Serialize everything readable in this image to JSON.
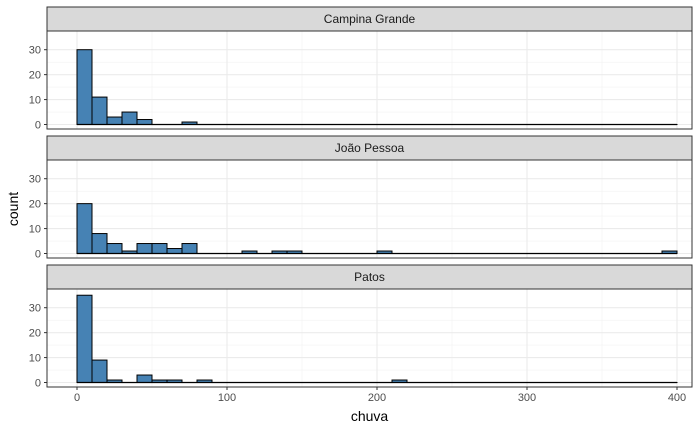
{
  "chart_data": {
    "type": "bar",
    "subtype": "faceted-histogram",
    "xlabel": "chuva",
    "ylabel": "count",
    "xlim": [
      -20,
      410
    ],
    "ylim": [
      -1.8,
      37.5
    ],
    "x_ticks": [
      0,
      100,
      200,
      300,
      400
    ],
    "x_tick_labels": [
      "0",
      "100",
      "200",
      "300",
      "400"
    ],
    "y_ticks": [
      0,
      10,
      20,
      30
    ],
    "y_tick_labels": [
      "0",
      "10",
      "20",
      "30"
    ],
    "grid": true,
    "bin_width": 10,
    "bar_fill": "#4682b4",
    "bar_outline": "#000000",
    "strip_fill": "#d9d9d9",
    "bins": [
      0,
      10,
      20,
      30,
      40,
      50,
      60,
      70,
      80,
      90,
      100,
      110,
      120,
      130,
      140,
      150,
      160,
      170,
      180,
      190,
      200,
      210,
      220,
      230,
      240,
      250,
      260,
      270,
      280,
      290,
      300,
      310,
      320,
      330,
      340,
      350,
      360,
      370,
      380,
      390
    ],
    "facets": [
      {
        "name": "Campina Grande",
        "counts": [
          30,
          11,
          3,
          5,
          2,
          0,
          0,
          1,
          0,
          0,
          0,
          0,
          0,
          0,
          0,
          0,
          0,
          0,
          0,
          0,
          0,
          0,
          0,
          0,
          0,
          0,
          0,
          0,
          0,
          0,
          0,
          0,
          0,
          0,
          0,
          0,
          0,
          0,
          0,
          0
        ]
      },
      {
        "name": "João Pessoa",
        "counts": [
          20,
          8,
          4,
          1,
          4,
          4,
          2,
          4,
          0,
          0,
          0,
          1,
          0,
          1,
          1,
          0,
          0,
          0,
          0,
          0,
          1,
          0,
          0,
          0,
          0,
          0,
          0,
          0,
          0,
          0,
          0,
          0,
          0,
          0,
          0,
          0,
          0,
          0,
          0,
          1
        ]
      },
      {
        "name": "Patos",
        "counts": [
          35,
          9,
          1,
          0,
          3,
          1,
          1,
          0,
          1,
          0,
          0,
          0,
          0,
          0,
          0,
          0,
          0,
          0,
          0,
          0,
          0,
          1,
          0,
          0,
          0,
          0,
          0,
          0,
          0,
          0,
          0,
          0,
          0,
          0,
          0,
          0,
          0,
          0,
          0,
          0
        ]
      }
    ]
  }
}
